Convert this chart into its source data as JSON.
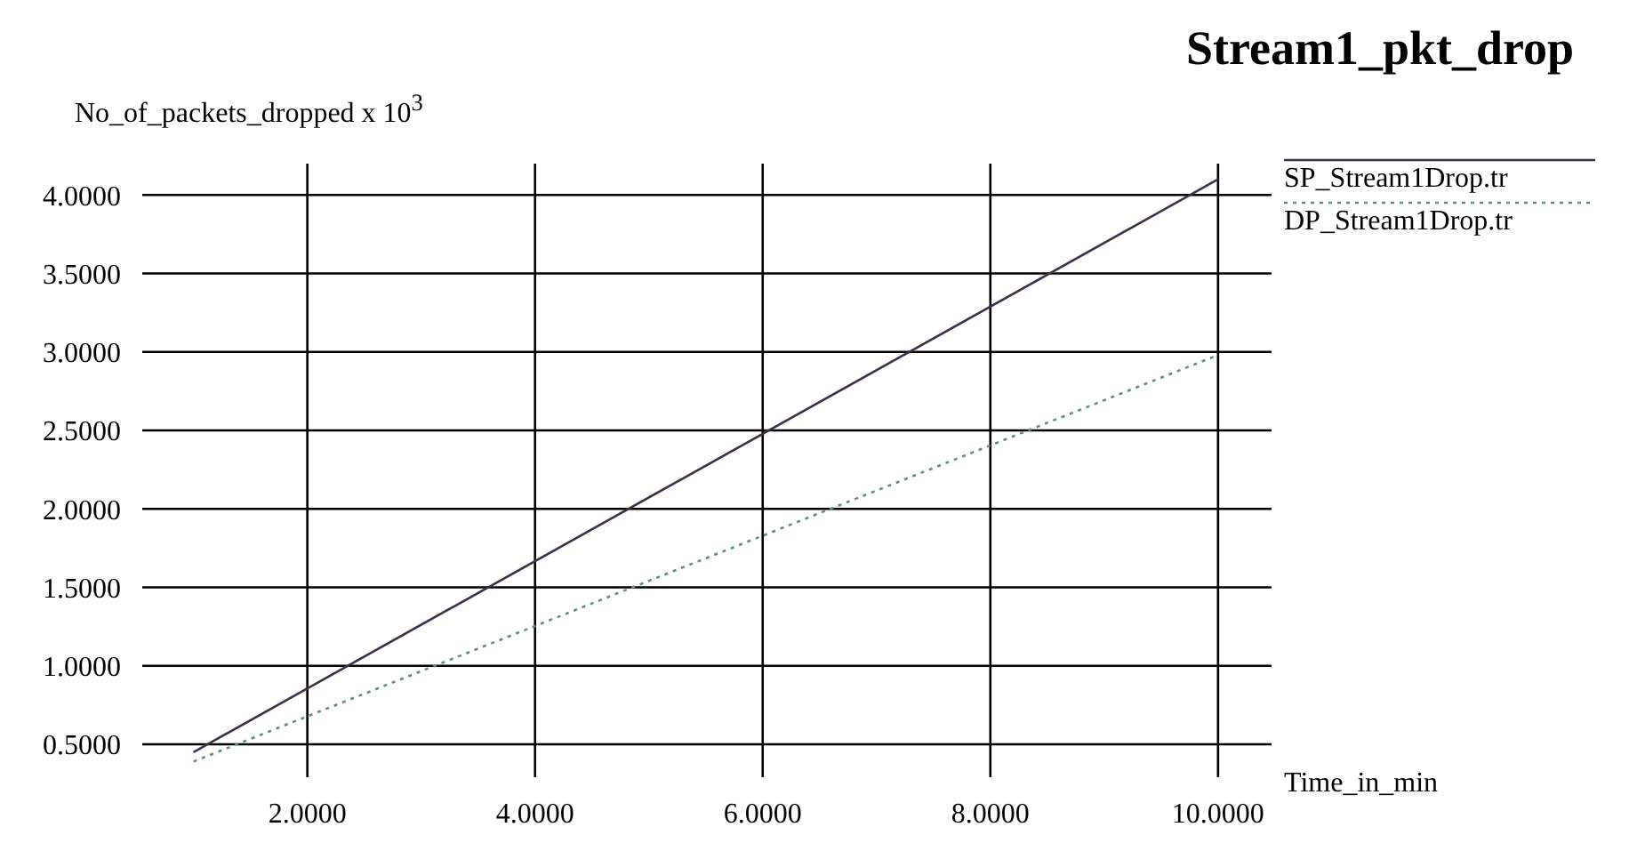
{
  "chart_data": {
    "type": "line",
    "title": "Stream1_pkt_drop",
    "xlabel": "Time_in_min",
    "ylabel": "No_of_packets_dropped x 10$^{3}$",
    "xlim": [
      0.55,
      10.47
    ],
    "ylim": [
      0.29,
      4.2
    ],
    "xticks": [
      {
        "value": 2,
        "label": "2.0000"
      },
      {
        "value": 4,
        "label": "4.0000"
      },
      {
        "value": 6,
        "label": "6.0000"
      },
      {
        "value": 8,
        "label": "8.0000"
      },
      {
        "value": 10,
        "label": "10.0000"
      }
    ],
    "yticks": [
      {
        "value": 0.5,
        "label": "0.5000"
      },
      {
        "value": 1,
        "label": "1.0000"
      },
      {
        "value": 1.5,
        "label": "1.5000"
      },
      {
        "value": 2,
        "label": "2.0000"
      },
      {
        "value": 2.5,
        "label": "2.5000"
      },
      {
        "value": 3,
        "label": "3.0000"
      },
      {
        "value": 3.5,
        "label": "3.5000"
      },
      {
        "value": 4,
        "label": "4.0000"
      }
    ],
    "x": [
      1,
      10
    ],
    "grid": true,
    "legend": "top right",
    "marker": "none",
    "series": [
      {
        "name": "SP_Stream1Drop.tr",
        "color": "#3c2f4a",
        "values": [
          0.45,
          4.1
        ],
        "line_style": "solid"
      },
      {
        "name": "DP_Stream1Drop.tr",
        "color": "#5f8f6f",
        "values": [
          0.39,
          2.98
        ],
        "line_style": "dotted"
      }
    ]
  }
}
